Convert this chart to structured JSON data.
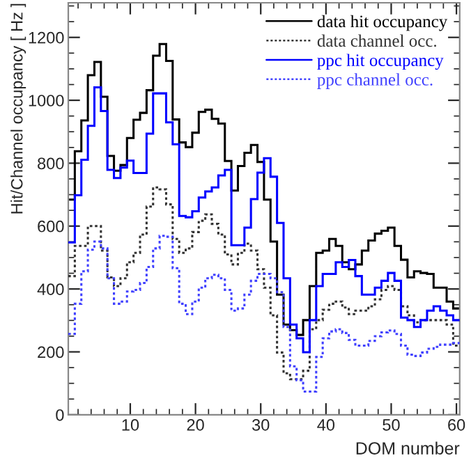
{
  "chart_data": {
    "type": "histogram",
    "xlabel": "DOM number",
    "ylabel": "Hit/Channel occupancy [ Hz ]",
    "bins": [
      0.5,
      1.5,
      2.5,
      3.5,
      4.5,
      5.5,
      6.5,
      7.5,
      8.5,
      9.5,
      10.5,
      11.5,
      12.5,
      13.5,
      14.5,
      15.5,
      16.5,
      17.5,
      18.5,
      19.5,
      20.5,
      21.5,
      22.5,
      23.5,
      24.5,
      25.5,
      26.5,
      27.5,
      28.5,
      29.5,
      30.5,
      31.5,
      32.5,
      33.5,
      34.5,
      35.5,
      36.5,
      37.5,
      38.5,
      39.5,
      40.5,
      41.5,
      42.5,
      43.5,
      44.5,
      45.5,
      46.5,
      47.5,
      48.5,
      49.5,
      50.5,
      51.5,
      52.5,
      53.5,
      54.5,
      55.5,
      56.5,
      57.5,
      58.5,
      59.5,
      60.5
    ],
    "series": [
      {
        "name": "data hit occupancy",
        "color": "#000000",
        "line_style": "solid",
        "values": [
          684,
          838,
          936,
          1080,
          1122,
          1011,
          823,
          776,
          794,
          880,
          938,
          960,
          1032,
          1142,
          1179,
          1125,
          939,
          866,
          851,
          897,
          963,
          970,
          941,
          926,
          807,
          713,
          791,
          833,
          858,
          804,
          684,
          551,
          382,
          287,
          269,
          254,
          301,
          409,
          515,
          522,
          559,
          537,
          485,
          463,
          478,
          522,
          554,
          576,
          585,
          595,
          537,
          493,
          437,
          456,
          451,
          448,
          404,
          404,
          360,
          338
        ]
      },
      {
        "name": "data channel occ.",
        "color": "#333333",
        "line_style": "dotted",
        "values": [
          441,
          537,
          537,
          600,
          600,
          522,
          437,
          409,
          434,
          485,
          515,
          573,
          662,
          723,
          717,
          669,
          559,
          515,
          529,
          581,
          617,
          637,
          607,
          573,
          510,
          478,
          515,
          544,
          522,
          463,
          404,
          316,
          198,
          132,
          113,
          113,
          140,
          272,
          301,
          334,
          353,
          360,
          341,
          320,
          331,
          331,
          345,
          367,
          397,
          409,
          397,
          345,
          316,
          294,
          301,
          301,
          301,
          301,
          287,
          220
        ]
      },
      {
        "name": "ppc hit occupancy",
        "color": "#0000ff",
        "line_style": "solid",
        "values": [
          548,
          698,
          811,
          919,
          1041,
          966,
          779,
          753,
          786,
          808,
          769,
          769,
          894,
          1022,
          1022,
          930,
          860,
          632,
          628,
          647,
          691,
          710,
          723,
          761,
          779,
          539,
          539,
          595,
          686,
          770,
          816,
          757,
          610,
          434,
          287,
          243,
          199,
          301,
          409,
          448,
          448,
          485,
          470,
          492,
          441,
          382,
          382,
          404,
          426,
          451,
          426,
          309,
          301,
          279,
          301,
          331,
          345,
          331,
          316,
          301
        ]
      },
      {
        "name": "ppc channel occ.",
        "color": "#4040ff",
        "line_style": "dotted",
        "values": [
          257,
          353,
          456,
          525,
          551,
          529,
          434,
          353,
          360,
          392,
          397,
          419,
          470,
          529,
          569,
          566,
          466,
          353,
          320,
          360,
          404,
          434,
          445,
          434,
          397,
          331,
          338,
          382,
          426,
          448,
          448,
          434,
          390,
          279,
          154,
          110,
          74,
          74,
          184,
          243,
          265,
          272,
          260,
          238,
          220,
          220,
          235,
          250,
          262,
          268,
          257,
          220,
          191,
          187,
          198,
          210,
          216,
          223,
          223,
          228
        ]
      }
    ],
    "xlim": [
      0.5,
      60.5
    ],
    "xticks": [
      10,
      20,
      30,
      40,
      50,
      60
    ],
    "ylim": [
      0,
      1310
    ],
    "yticks": [
      0,
      200,
      400,
      600,
      800,
      1000,
      1200
    ],
    "legend": "top right"
  }
}
